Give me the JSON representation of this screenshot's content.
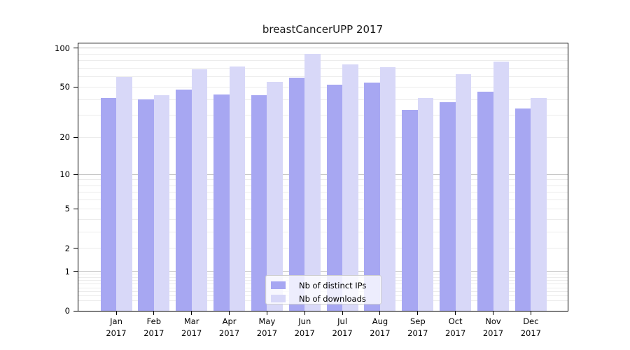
{
  "chart_data": {
    "type": "bar",
    "title": "breastCancerUPP 2017",
    "categories": [
      "Jan",
      "Feb",
      "Mar",
      "Apr",
      "May",
      "Jun",
      "Jul",
      "Aug",
      "Sep",
      "Oct",
      "Nov",
      "Dec"
    ],
    "x_tick_second_line": "2017",
    "series": [
      {
        "name": "Nb of distinct IPs",
        "slug": "distinct-ips",
        "color": "#a7a7f2",
        "values": [
          41,
          40,
          48,
          44,
          43,
          59,
          52,
          54,
          33,
          38,
          46,
          34
        ]
      },
      {
        "name": "Nb of downloads",
        "slug": "downloads",
        "color": "#d8d8f8",
        "values": [
          60,
          43,
          69,
          72,
          55,
          90,
          75,
          71,
          41,
          63,
          79,
          41
        ]
      }
    ],
    "yscale": "log10(value+1)",
    "ylim": [
      0,
      110
    ],
    "yticks": [
      0,
      1,
      2,
      5,
      10,
      20,
      50,
      100
    ],
    "major_grid_values": [
      1,
      10,
      100
    ],
    "minor_grid_values": [
      0.2,
      0.3,
      0.4,
      0.5,
      0.6,
      0.7,
      0.8,
      0.9,
      2,
      3,
      4,
      5,
      6,
      7,
      8,
      9,
      20,
      30,
      40,
      50,
      60,
      70,
      80,
      90
    ],
    "grid": true,
    "legend_position": "lower center",
    "xlabel": "",
    "ylabel": ""
  },
  "colors": {
    "background": "#ffffff",
    "spine": "#000000",
    "major_grid": "#c2c2c2",
    "minor_grid": "#ececec",
    "tick_label": "#000000",
    "legend_border": "#cfcfcf"
  }
}
